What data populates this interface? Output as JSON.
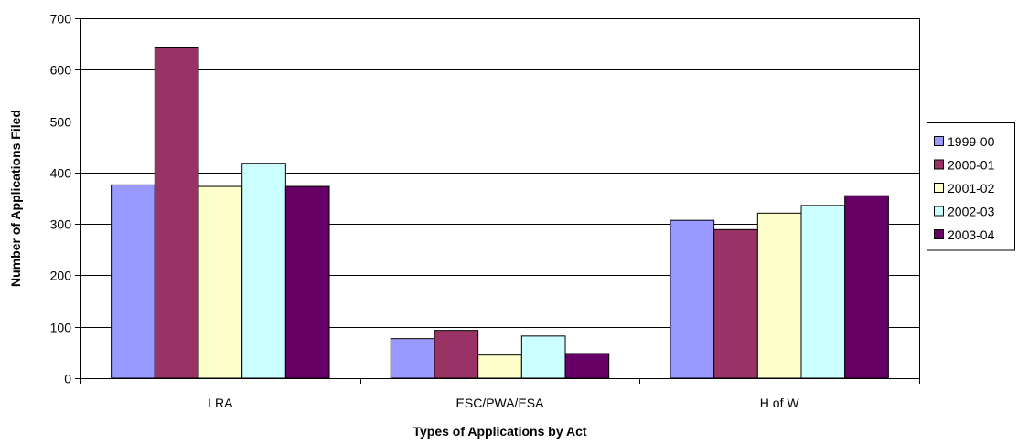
{
  "chart_data": {
    "type": "bar",
    "title": "",
    "xlabel": "Types of Applications by Act",
    "ylabel": "Number of Applications Filed",
    "categories": [
      "LRA",
      "ESC/PWA/ESA",
      "H of W"
    ],
    "ylim": [
      0,
      700
    ],
    "yticks": [
      0,
      100,
      200,
      300,
      400,
      500,
      600,
      700
    ],
    "grid": true,
    "legend_position": "right",
    "series": [
      {
        "name": "1999-00",
        "color": "#9999ff",
        "values": [
          376,
          77,
          307
        ]
      },
      {
        "name": "2000-01",
        "color": "#993366",
        "values": [
          644,
          93,
          289
        ]
      },
      {
        "name": "2001-02",
        "color": "#ffffcc",
        "values": [
          373,
          45,
          321
        ]
      },
      {
        "name": "2002-03",
        "color": "#ccffff",
        "values": [
          418,
          82,
          336
        ]
      },
      {
        "name": "2003-04",
        "color": "#660066",
        "values": [
          373,
          48,
          355
        ]
      }
    ]
  }
}
